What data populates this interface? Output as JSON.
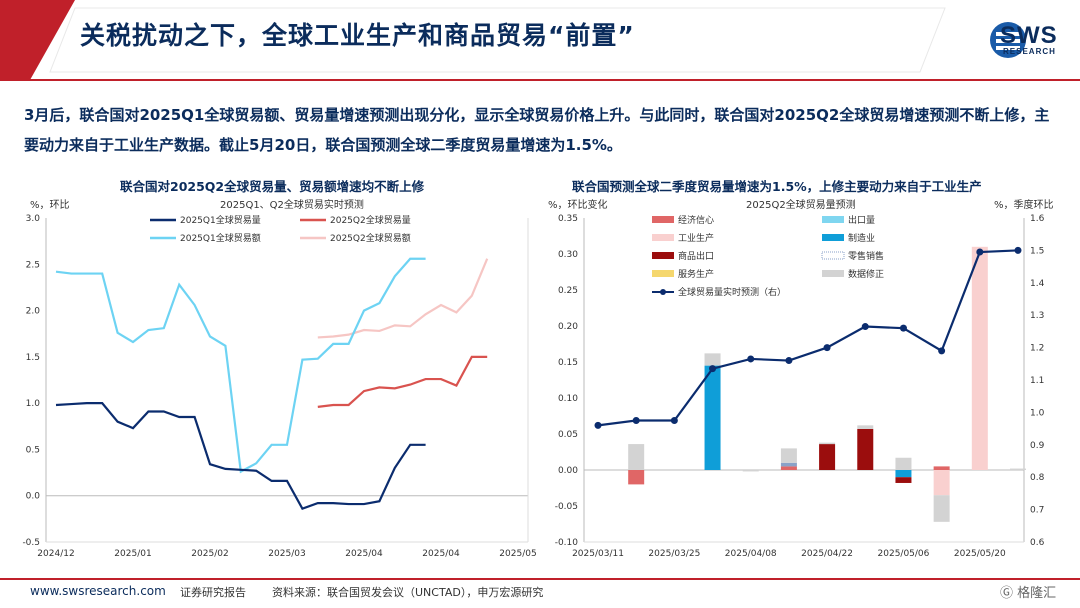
{
  "header": {
    "title": "关税扰动之下，全球工业生产和商品贸易“前置”",
    "logo_text": "SWS",
    "logo_sub": "RESEARCH"
  },
  "summary": "3月后，联合国对2025Q1全球贸易额、贸易量增速预测出现分化，显示全球贸易价格上升。与此同时，联合国对2025Q2全球贸易增速预测不断上修，主要动力来自于工业生产数据。截止5月20日，联合国预测全球二季度贸易量增速为1.5%。",
  "colors": {
    "accent_red": "#c0202a",
    "navy": "#0b2c5c",
    "q1_volume": "#0b2c6e",
    "q2_volume": "#d9534f",
    "q1_value": "#6dd3f3",
    "q2_value": "#f6c6c4"
  },
  "footer": {
    "url": "www.swsresearch.com",
    "type": "证券研究报告",
    "source": "资料来源：联合国贸发会议（UNCTAD），申万宏源研究",
    "watermark": "格隆汇"
  },
  "chart_data": [
    {
      "type": "line",
      "title": "联合国对2025Q2全球贸易量、贸易额增速均不断上修",
      "subtitle": "2025Q1、Q2全球贸易实时预测",
      "ylabel": "%，环比",
      "ylim": [
        -0.5,
        3.0
      ],
      "yticks": [
        "3.0",
        "2.5",
        "2.0",
        "1.5",
        "1.0",
        "0.5",
        "0.0",
        "-0.5"
      ],
      "x_ticks": [
        "2024/12",
        "2025/01",
        "2025/02",
        "2025/03",
        "2025/04",
        "2025/04",
        "2025/05"
      ],
      "n_points": 31,
      "series": [
        {
          "name": "2025Q1全球贸易量",
          "color": "#0b2c6e",
          "start": 0,
          "values": [
            0.98,
            0.99,
            1.0,
            1.0,
            0.8,
            0.73,
            0.91,
            0.91,
            0.85,
            0.85,
            0.34,
            0.29,
            0.28,
            0.27,
            0.16,
            0.16,
            -0.14,
            -0.08,
            -0.08,
            -0.09,
            -0.09,
            -0.06,
            0.3,
            0.55,
            0.55
          ]
        },
        {
          "name": "2025Q2全球贸易量",
          "color": "#d9534f",
          "start": 17,
          "values": [
            0.96,
            0.98,
            0.98,
            1.13,
            1.17,
            1.16,
            1.2,
            1.26,
            1.26,
            1.19,
            1.5,
            1.5
          ]
        },
        {
          "name": "2025Q1全球贸易额",
          "color": "#6dd3f3",
          "start": 0,
          "values": [
            2.42,
            2.4,
            2.4,
            2.4,
            1.76,
            1.66,
            1.79,
            1.81,
            2.28,
            2.06,
            1.72,
            1.62,
            0.26,
            0.35,
            0.55,
            0.55,
            1.47,
            1.48,
            1.64,
            1.64,
            2.0,
            2.08,
            2.37,
            2.56,
            2.56
          ]
        },
        {
          "name": "2025Q2全球贸易额",
          "color": "#f6c6c4",
          "start": 17,
          "values": [
            1.71,
            1.72,
            1.74,
            1.79,
            1.78,
            1.84,
            1.83,
            1.96,
            2.06,
            1.98,
            2.16,
            2.56
          ]
        }
      ]
    },
    {
      "type": "bar",
      "title": "联合国预测全球二季度贸易量增速为1.5%，上修主要动力来自于工业生产",
      "subtitle": "2025Q2全球贸易量预测",
      "ylabel": "%，环比变化",
      "y2label": "%，季度环比",
      "ylim": [
        -0.1,
        0.35
      ],
      "y2lim": [
        0.6,
        1.6
      ],
      "yticks": [
        "0.35",
        "0.30",
        "0.25",
        "0.20",
        "0.15",
        "0.10",
        "0.05",
        "0.00",
        "-0.05",
        "-0.10"
      ],
      "y2ticks": [
        "1.6",
        "1.5",
        "1.4",
        "1.3",
        "1.2",
        "1.1",
        "1.0",
        "0.9",
        "0.8",
        "0.7",
        "0.6"
      ],
      "x_ticks": [
        "2025/03/11",
        "2025/03/25",
        "2025/04/08",
        "2025/04/22",
        "2025/05/06",
        "2025/05/20"
      ],
      "n_points": 12,
      "stacks": [
        {
          "name": "经济信心",
          "color": "#e06666",
          "values": [
            0,
            -0.02,
            0,
            0,
            0,
            0.005,
            0,
            0,
            0,
            0.005,
            0,
            0
          ]
        },
        {
          "name": "出口量",
          "color": "#7fd6f0",
          "values": [
            0,
            0,
            0,
            0,
            0,
            0,
            0,
            0,
            0,
            0,
            0,
            0
          ]
        },
        {
          "name": "工业生产",
          "color": "#f9d0cf",
          "values": [
            0,
            0,
            0,
            0,
            0,
            0,
            0,
            0,
            0,
            -0.035,
            0.31,
            0
          ]
        },
        {
          "name": "制造业",
          "color": "#0f9ed8",
          "values": [
            0,
            0,
            0,
            0.145,
            0,
            0,
            0,
            0,
            -0.01,
            0,
            0,
            0
          ]
        },
        {
          "name": "商品出口",
          "color": "#9b0d0d",
          "values": [
            0,
            0,
            0,
            0,
            0,
            0,
            0.036,
            0.057,
            -0.008,
            0,
            0,
            0
          ]
        },
        {
          "name": "零售销售",
          "color": "#8aa2c8",
          "values": [
            0,
            0,
            0,
            0,
            0,
            0.005,
            0,
            0,
            0,
            0,
            0,
            0
          ]
        },
        {
          "name": "服务生产",
          "color": "#f5d76e",
          "values": [
            0,
            0,
            0,
            0,
            0,
            0,
            0,
            0,
            0,
            0,
            0,
            0
          ]
        },
        {
          "name": "数据修正",
          "color": "#d3d3d3",
          "values": [
            0,
            0.036,
            0,
            0.017,
            -0.002,
            0.02,
            0.002,
            0.005,
            0.017,
            -0.037,
            0,
            0.002
          ]
        }
      ],
      "line": {
        "name": "全球贸易量实时预测（右）",
        "color": "#0b2c6e",
        "values": [
          0.96,
          0.975,
          0.975,
          1.135,
          1.165,
          1.16,
          1.2,
          1.265,
          1.26,
          1.19,
          1.495,
          1.5
        ]
      }
    }
  ]
}
